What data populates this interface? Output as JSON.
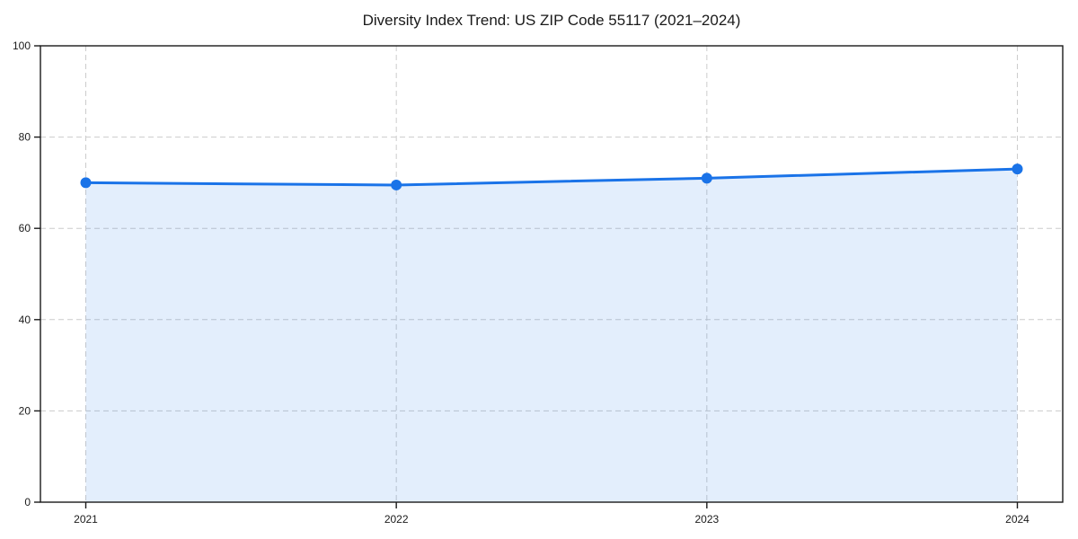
{
  "figure": {
    "title": "Diversity Index Trend: US ZIP Code 55117 (2021–2024)"
  },
  "chart_data": {
    "type": "line",
    "title": "Diversity Index Trend: US ZIP Code 55117 (2021–2024)",
    "categories": [
      "2021",
      "2022",
      "2023",
      "2024"
    ],
    "values": [
      70,
      69.5,
      71,
      73
    ],
    "series_name": "Diversity Index",
    "xlabel": "",
    "ylabel": "",
    "ylim": [
      0,
      100
    ],
    "yticks": [
      0,
      20,
      40,
      60,
      80,
      100
    ],
    "grid": "dashed-both-axes",
    "legend": "none",
    "marker": "circle",
    "area_fill": true,
    "colors": {
      "line": "#1a73e8",
      "marker": "#1a73e8",
      "fill": "rgba(26,115,232,0.12)",
      "grid": "#cccccc",
      "spine": "#1a1a1a",
      "text": "#1a1a1a",
      "background": "#ffffff"
    }
  }
}
